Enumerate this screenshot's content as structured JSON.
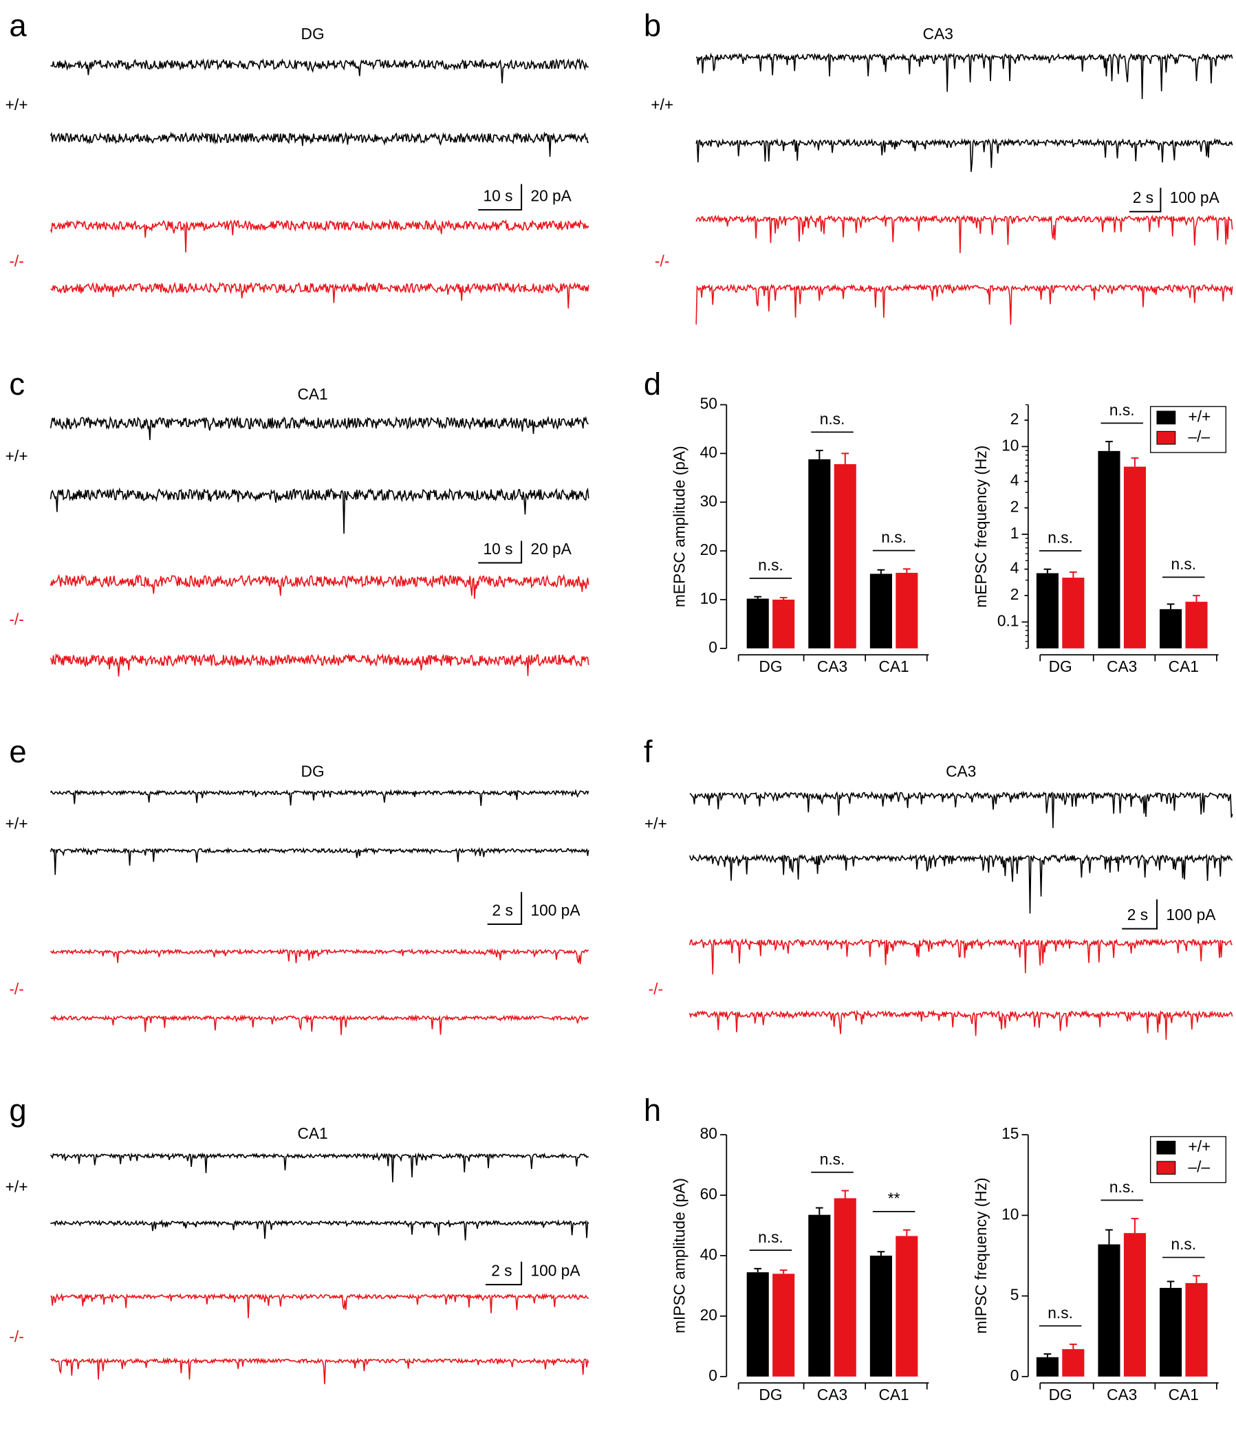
{
  "panel_labels": [
    "a",
    "b",
    "c",
    "d",
    "e",
    "f",
    "g",
    "h"
  ],
  "trace_panels": [
    {
      "title": "DG",
      "genotypes": [
        "+/+",
        "-/-"
      ],
      "scale_time": "10 s",
      "scale_current": "20 pA"
    },
    {
      "title": "CA3",
      "genotypes": [
        "+/+",
        "-/-"
      ],
      "scale_time": "2 s",
      "scale_current": "100 pA"
    },
    {
      "title": "CA1",
      "genotypes": [
        "+/+",
        "-/-"
      ],
      "scale_time": "10 s",
      "scale_current": "20 pA"
    },
    {
      "title": "DG",
      "genotypes": [
        "+/+",
        "-/-"
      ],
      "scale_time": "2 s",
      "scale_current": "100 pA"
    },
    {
      "title": "CA3",
      "genotypes": [
        "+/+",
        "-/-"
      ],
      "scale_time": "2 s",
      "scale_current": "100 pA"
    },
    {
      "title": "CA1",
      "genotypes": [
        "+/+",
        "-/-"
      ],
      "scale_time": "2 s",
      "scale_current": "100 pA"
    }
  ],
  "chart_data": [
    {
      "type": "bar",
      "ylabel": "mEPSC amplitude (pA)",
      "categories": [
        "DG",
        "CA3",
        "CA1"
      ],
      "series": [
        {
          "name": "+/+",
          "color": "#000000",
          "values": [
            10.2,
            38.8,
            15.3
          ],
          "errors": [
            0.4,
            1.8,
            0.8
          ]
        },
        {
          "name": "–/–",
          "color": "#e8141b",
          "values": [
            10.0,
            37.8,
            15.5
          ],
          "errors": [
            0.4,
            2.2,
            0.8
          ]
        }
      ],
      "annotations": [
        "n.s.",
        "n.s.",
        "n.s."
      ],
      "ylim": [
        0,
        50
      ],
      "yticks": [
        0,
        10,
        20,
        30,
        40,
        50
      ],
      "legend": false
    },
    {
      "type": "bar",
      "ylabel": "mEPSC frequency (Hz)",
      "categories": [
        "DG",
        "CA3",
        "CA1"
      ],
      "log": true,
      "series": [
        {
          "name": "+/+",
          "color": "#000000",
          "values": [
            0.36,
            8.9,
            0.14
          ],
          "errors": [
            0.04,
            2.5,
            0.02
          ]
        },
        {
          "name": "–/–",
          "color": "#e8141b",
          "values": [
            0.32,
            5.9,
            0.17
          ],
          "errors": [
            0.05,
            1.5,
            0.03
          ]
        }
      ],
      "annotations": [
        "n.s.",
        "n.s.",
        "n.s."
      ],
      "ylim": [
        0.05,
        30
      ],
      "yticks": [
        0.1,
        {
          "value": 0.2,
          "label": "2"
        },
        {
          "value": 0.4,
          "label": "4"
        },
        1,
        {
          "value": 2,
          "label": "2"
        },
        {
          "value": 4,
          "label": "4"
        },
        10,
        {
          "value": 20,
          "label": "2"
        }
      ],
      "legend": "upper right"
    },
    {
      "type": "bar",
      "ylabel": "mIPSC amplitude (pA)",
      "categories": [
        "DG",
        "CA3",
        "CA1"
      ],
      "series": [
        {
          "name": "+/+",
          "color": "#000000",
          "values": [
            34.5,
            53.5,
            40
          ],
          "errors": [
            1.2,
            2.3,
            1.3
          ]
        },
        {
          "name": "–/–",
          "color": "#e8141b",
          "values": [
            34,
            59,
            46.5
          ],
          "errors": [
            1.2,
            2.5,
            2
          ]
        }
      ],
      "annotations": [
        "n.s.",
        "n.s.",
        "**"
      ],
      "ylim": [
        0,
        80
      ],
      "yticks": [
        0,
        20,
        40,
        60,
        80
      ],
      "legend": false
    },
    {
      "type": "bar",
      "ylabel": "mIPSC frequency (Hz)",
      "categories": [
        "DG",
        "CA3",
        "CA1"
      ],
      "series": [
        {
          "name": "+/+",
          "color": "#000000",
          "values": [
            1.2,
            8.2,
            5.5
          ],
          "errors": [
            0.2,
            0.9,
            0.4
          ]
        },
        {
          "name": "–/–",
          "color": "#e8141b",
          "values": [
            1.7,
            8.9,
            5.8
          ],
          "errors": [
            0.3,
            0.9,
            0.45
          ]
        }
      ],
      "annotations": [
        "n.s.",
        "n.s.",
        "n.s."
      ],
      "ylim": [
        0,
        15
      ],
      "yticks": [
        0,
        5,
        10,
        15
      ],
      "legend": "upper right"
    }
  ]
}
